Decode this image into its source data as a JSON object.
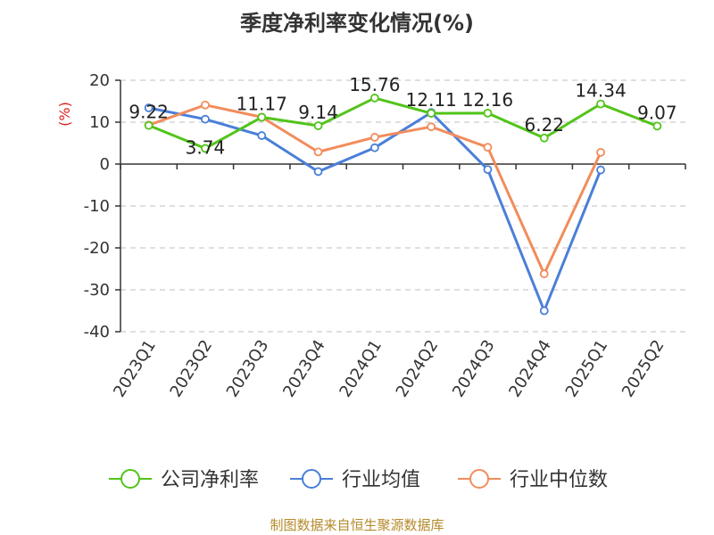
{
  "chart_data": {
    "type": "line",
    "title": "季度净利率变化情况(%)",
    "ylabel": "(%)",
    "xlabel": "",
    "categories": [
      "2023Q1",
      "2023Q2",
      "2023Q3",
      "2023Q4",
      "2024Q1",
      "2024Q2",
      "2024Q3",
      "2024Q4",
      "2025Q1",
      "2025Q2"
    ],
    "ylim": [
      -40,
      20
    ],
    "yticks": [
      "20",
      "10",
      "0",
      "-10",
      "-20",
      "-30",
      "-40"
    ],
    "grid": "horizontal-dashed",
    "legend_position": "bottom",
    "series": [
      {
        "name": "公司净利率",
        "color": "#52c41a",
        "values": [
          9.22,
          3.74,
          11.17,
          9.14,
          15.76,
          12.11,
          12.16,
          6.22,
          14.34,
          9.07
        ],
        "labels": [
          "9.22",
          "3.74",
          "11.17",
          "9.14",
          "15.76",
          "12.11",
          "12.16",
          "6.22",
          "14.34",
          "9.07"
        ]
      },
      {
        "name": "行业均值",
        "color": "#4a7fd8",
        "values": [
          13.4,
          10.7,
          6.8,
          -1.8,
          3.9,
          12.3,
          -1.3,
          -35.0,
          -1.4,
          null
        ]
      },
      {
        "name": "行业中位数",
        "color": "#f28c5c",
        "values": [
          9.3,
          14.1,
          11.2,
          2.9,
          6.4,
          8.9,
          4.0,
          -26.2,
          2.8,
          null
        ]
      }
    ]
  },
  "source_note": "制图数据来自恒生聚源数据库"
}
